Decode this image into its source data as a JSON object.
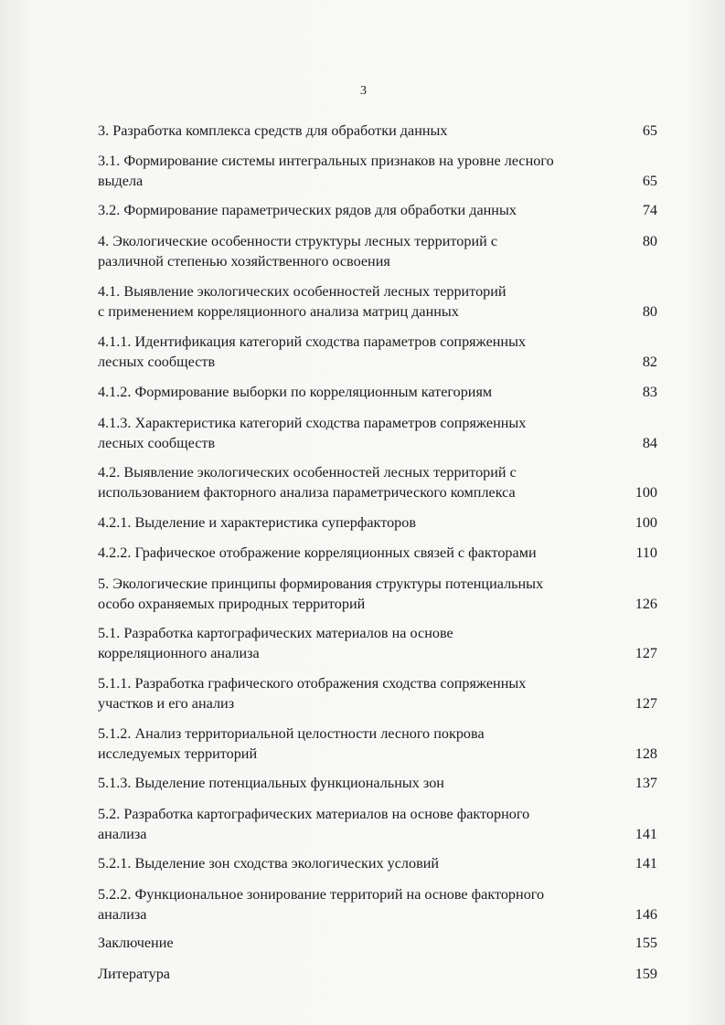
{
  "page_number": "3",
  "toc": [
    {
      "lines": [
        "3. Разработка комплекса средств для обработки данных"
      ],
      "page": "65"
    },
    {
      "lines": [
        "3.1. Формирование системы интегральных признаков на уровне лесного",
        "выдела"
      ],
      "page": "65"
    },
    {
      "lines": [
        "3.2. Формирование параметрических рядов для обработки данных"
      ],
      "page": "74"
    },
    {
      "lines": [
        "4. Экологические особенности структуры лесных территорий с",
        "различной степенью хозяйственного освоения"
      ],
      "page": "80"
    },
    {
      "lines": [
        "4.1. Выявление экологических особенностей лесных территорий",
        "с применением корреляционного анализа матриц данных"
      ],
      "page": "80"
    },
    {
      "lines": [
        "4.1.1. Идентификация категорий сходства параметров сопряженных",
        "лесных сообществ"
      ],
      "page": "82"
    },
    {
      "lines": [
        "4.1.2. Формирование выборки по корреляционным категориям"
      ],
      "page": "83"
    },
    {
      "lines": [
        "4.1.3. Характеристика категорий сходства параметров сопряженных",
        "лесных сообществ"
      ],
      "page": "84"
    },
    {
      "lines": [
        "4.2. Выявление экологических особенностей лесных территорий с",
        "использованием факторного анализа параметрического комплекса"
      ],
      "page": "100"
    },
    {
      "lines": [
        "4.2.1. Выделение и характеристика суперфакторов"
      ],
      "page": "100"
    },
    {
      "lines": [
        "4.2.2. Графическое отображение корреляционных связей с факторами"
      ],
      "page": "110"
    },
    {
      "lines": [
        "5. Экологические принципы формирования структуры потенциальных",
        "особо охраняемых природных территорий"
      ],
      "page": "126"
    },
    {
      "lines": [
        "5.1. Разработка картографических материалов на основе",
        "корреляционного анализа"
      ],
      "page": "127"
    },
    {
      "lines": [
        "5.1.1. Разработка графического отображения сходства сопряженных",
        "участков и его анализ"
      ],
      "page": "127"
    },
    {
      "lines": [
        "5.1.2. Анализ территориальной целостности лесного покрова",
        "исследуемых территорий"
      ],
      "page": "128"
    },
    {
      "lines": [
        "5.1.3. Выделение потенциальных функциональных зон"
      ],
      "page": "137"
    },
    {
      "lines": [
        "5.2. Разработка картографических материалов на основе факторного",
        "анализа"
      ],
      "page": "141"
    },
    {
      "lines": [
        "5.2.1. Выделение зон сходства экологических условий"
      ],
      "page": "141"
    },
    {
      "lines": [
        "5.2.2. Функциональное зонирование территорий на основе факторного",
        "анализа"
      ],
      "page": "146"
    },
    {
      "lines": [
        "Заключение"
      ],
      "page": "155"
    },
    {
      "lines": [
        "Литература"
      ],
      "page": "159"
    }
  ]
}
